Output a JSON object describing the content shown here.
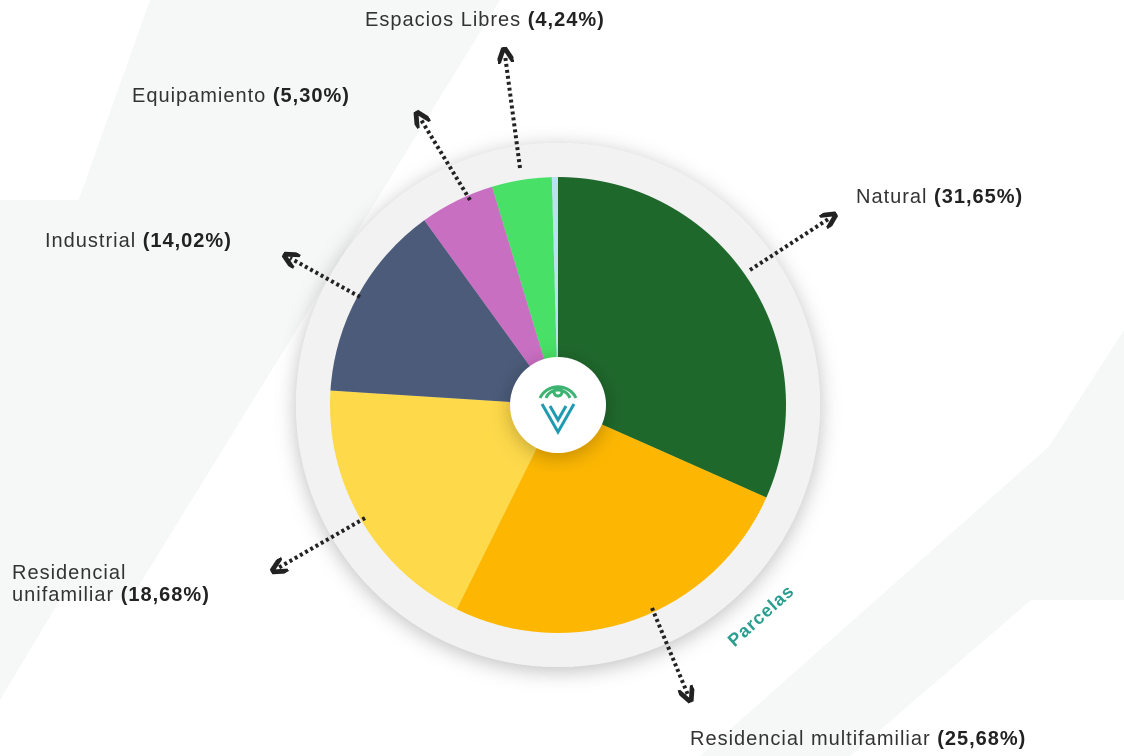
{
  "chart_data": {
    "type": "pie",
    "categories": [
      "Natural",
      "Residencial multifamiliar",
      "Residencial unifamiliar",
      "Industrial",
      "Equipamiento",
      "Espacios Libres",
      null
    ],
    "values": [
      31.65,
      25.68,
      18.68,
      14.02,
      5.3,
      4.24,
      0.43
    ],
    "value_labels": [
      "(31,65%)",
      "(25,68%)",
      "(18,68%)",
      "(14,02%)",
      "(5,30%)",
      "(4,24%)",
      null
    ],
    "colors": [
      "#1f682c",
      "#fdb702",
      "#fed94a",
      "#4b5b79",
      "#c96fc2",
      "#48e066",
      "#b9e1ef"
    ],
    "center_label": "Parcelas"
  }
}
